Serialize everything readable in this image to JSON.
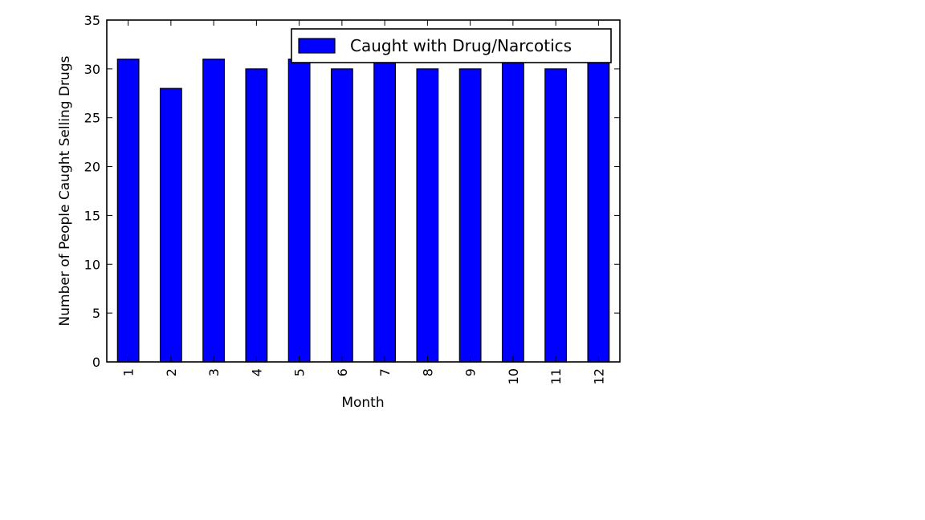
{
  "chart_data": {
    "type": "bar",
    "title": "",
    "xlabel": "Month",
    "ylabel": "Number of People Caught Selling Drugs",
    "categories": [
      "1",
      "2",
      "3",
      "4",
      "5",
      "6",
      "7",
      "8",
      "9",
      "10",
      "11",
      "12"
    ],
    "series": [
      {
        "name": "Caught with Drug/Narcotics",
        "values": [
          31,
          28,
          31,
          30,
          31,
          30,
          31,
          30,
          30,
          31,
          30,
          31
        ]
      }
    ],
    "ylim": [
      0,
      35
    ],
    "yticks": [
      0,
      5,
      10,
      15,
      20,
      25,
      30,
      35
    ],
    "grid": false,
    "legend_position": "top-right",
    "bar_color": "#0000ff",
    "edge_color": "#000000"
  }
}
